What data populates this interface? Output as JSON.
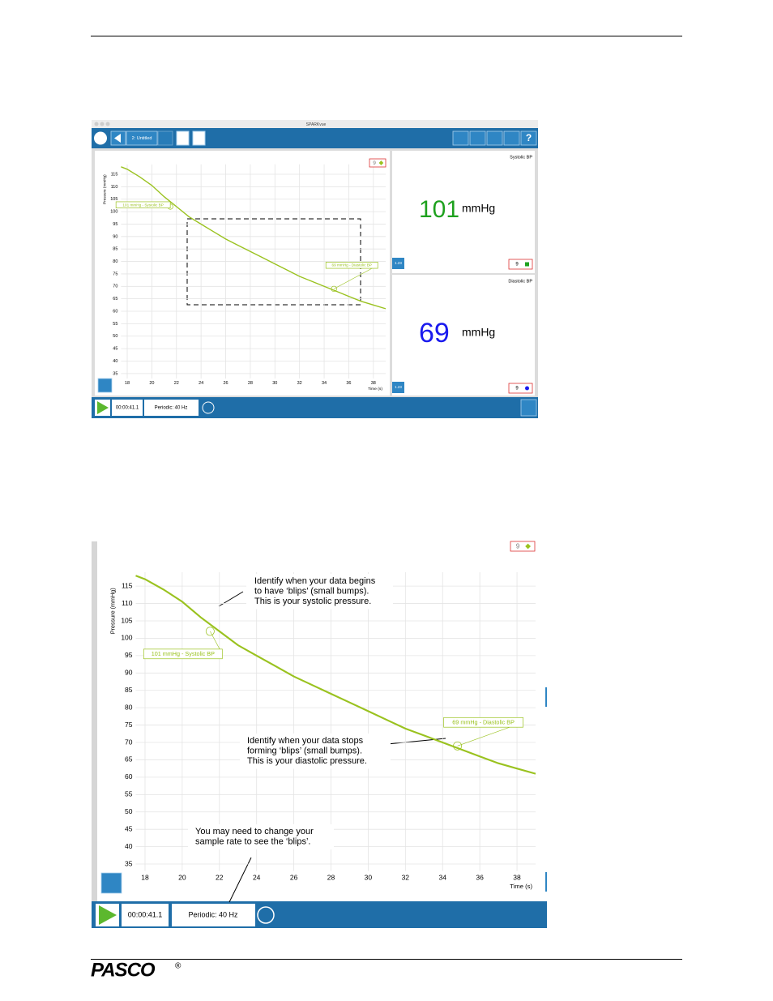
{
  "screen1": {
    "window_title": "SPARKvue",
    "page_label": "2: Untitled",
    "timer": "00:00:41.1",
    "sample_rate": "Periodic: 40 Hz",
    "graph": {
      "y_label": "Pressure (mmHg)",
      "x_label": "Time (s)",
      "legend": "9",
      "xlim": [
        17.5,
        39
      ],
      "ylim": [
        33,
        119
      ],
      "xticks": [
        18,
        20,
        22,
        24,
        26,
        28,
        30,
        32,
        34,
        36,
        38
      ],
      "yticks": [
        35,
        40,
        45,
        50,
        55,
        60,
        65,
        70,
        75,
        80,
        85,
        90,
        95,
        100,
        105,
        110,
        115
      ],
      "x": [
        17.5,
        18,
        19,
        20,
        21,
        22,
        23,
        24,
        25,
        26,
        27,
        28,
        29,
        30,
        31,
        32,
        33,
        34,
        35,
        36,
        37,
        38,
        39
      ],
      "values": [
        118,
        117,
        114,
        110.5,
        106,
        102,
        98,
        95,
        92,
        89,
        86.5,
        84,
        81.5,
        79,
        76.5,
        74,
        72,
        70,
        68,
        66,
        64,
        62.5,
        61
      ],
      "annotations": [
        {
          "text": "101 mmHg - Systolic BP",
          "x": 21.5,
          "y": 102
        },
        {
          "text": "69 mmHg - Diastolic BP",
          "x": 34.8,
          "y": 69
        }
      ]
    },
    "displays": [
      {
        "title": "Systolic BP",
        "value": "101",
        "unit": "mmHg",
        "legend": "9",
        "button": "1.23"
      },
      {
        "title": "Diastolic BP",
        "value": "69",
        "unit": "mmHg",
        "legend": "9",
        "button": "1.23"
      }
    ]
  },
  "screen2": {
    "timer": "00:00:41.1",
    "sample_rate": "Periodic: 40 Hz",
    "graph": {
      "y_label": "Pressure (mmHg)",
      "x_label": "Time (s)",
      "legend": "9",
      "xlim": [
        17.5,
        39
      ],
      "ylim": [
        33,
        119
      ],
      "xticks": [
        18,
        20,
        22,
        24,
        26,
        28,
        30,
        32,
        34,
        36,
        38
      ],
      "yticks": [
        35,
        40,
        45,
        50,
        55,
        60,
        65,
        70,
        75,
        80,
        85,
        90,
        95,
        100,
        105,
        110,
        115
      ],
      "x": [
        17.5,
        18,
        19,
        20,
        21,
        22,
        23,
        24,
        25,
        26,
        27,
        28,
        29,
        30,
        31,
        32,
        33,
        34,
        35,
        36,
        37,
        38,
        39
      ],
      "values": [
        118,
        117,
        114,
        110.5,
        106,
        102,
        98,
        95,
        92,
        89,
        86.5,
        84,
        81.5,
        79,
        76.5,
        74,
        72,
        70,
        68,
        66,
        64,
        62.5,
        61
      ],
      "annotations": [
        {
          "text": "101 mmHg - Systolic BP",
          "x": 21.5,
          "y": 102
        },
        {
          "text": "69 mmHg - Diastolic BP",
          "x": 34.8,
          "y": 69
        }
      ]
    },
    "callouts": [
      {
        "lines": [
          "Identify when your data begins",
          "to have ‘blips’ (small bumps).",
          "This is your systolic pressure."
        ]
      },
      {
        "lines": [
          "Identify when your data stops",
          "forming ‘blips’ (small bumps).",
          "This is your diastolic pressure."
        ]
      },
      {
        "lines": [
          "You may need to change your",
          "sample rate to see the ‘blips’."
        ]
      }
    ]
  },
  "footer": {
    "logo": "PASCO",
    "mark": "®"
  }
}
